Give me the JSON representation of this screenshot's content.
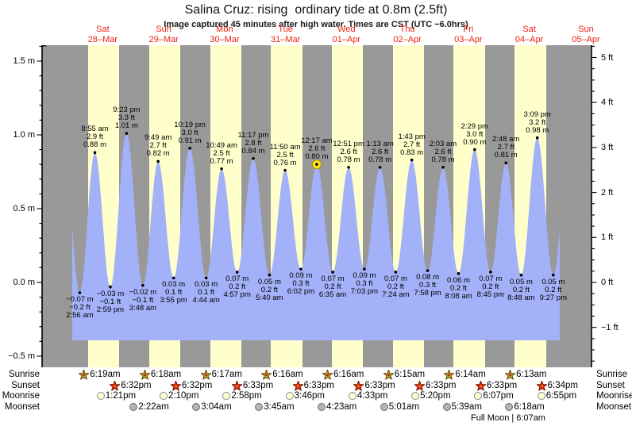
{
  "title": "Salina Cruz: rising  ordinary tide at 0.8m (2.5ft)",
  "subtitle": "Image captured 45 minutes after high water. Times are CST (UTC −6.0hrs)",
  "colors": {
    "night_band": "#999999",
    "daylight_band": "#ffffcc",
    "tide_fill": "#a2b1f8",
    "date_label": "#ee2211",
    "marker_dot": "#000000",
    "current_marker": "#ffe81e",
    "sunrise_star": "#d2aa28",
    "sunset_star": "#e33414",
    "moonrise_circle": "#ffffd6",
    "moonset_circle": "#b4b4b4"
  },
  "y_axis": {
    "left_labels": [
      "1.5 m",
      "1.0 m",
      "0.5 m",
      "0.0 m",
      "−0.5 m"
    ],
    "right_labels": [
      "5 ft",
      "4 ft",
      "3 ft",
      "2 ft",
      "1 ft",
      "0 ft",
      "−1 ft"
    ]
  },
  "chart_data": {
    "type": "area",
    "title": "Salina Cruz: rising ordinary tide at 0.8m (2.5ft)",
    "ylabel_left": "m",
    "ylabel_right": "ft",
    "ylim_m": [
      -0.5,
      1.5
    ],
    "ylim_ft": [
      -1,
      5
    ],
    "days": [
      {
        "name": "Sat",
        "date": "28–Mar"
      },
      {
        "name": "Sun",
        "date": "29–Mar"
      },
      {
        "name": "Mon",
        "date": "30–Mar"
      },
      {
        "name": "Tue",
        "date": "31–Mar"
      },
      {
        "name": "Wed",
        "date": "01–Apr"
      },
      {
        "name": "Thu",
        "date": "02–Apr"
      },
      {
        "name": "Fri",
        "date": "03–Apr"
      },
      {
        "name": "Sat",
        "date": "04–Apr"
      },
      {
        "name": "Sun",
        "date": "05–Apr"
      }
    ],
    "extremes": [
      {
        "day": 0,
        "time": "2:56 am",
        "type": "low",
        "m": -0.07,
        "ft": -0.2
      },
      {
        "day": 0,
        "time": "8:55 am",
        "type": "high",
        "m": 0.88,
        "ft": 2.9
      },
      {
        "day": 0,
        "time": "2:59 pm",
        "type": "low",
        "m": -0.03,
        "ft": -0.1
      },
      {
        "day": 0,
        "time": "9:23 pm",
        "type": "high",
        "m": 1.01,
        "ft": 3.3
      },
      {
        "day": 1,
        "time": "3:48 am",
        "type": "low",
        "m": -0.02,
        "ft": -0.1
      },
      {
        "day": 1,
        "time": "9:49 am",
        "type": "high",
        "m": 0.82,
        "ft": 2.7
      },
      {
        "day": 1,
        "time": "3:55 pm",
        "type": "low",
        "m": 0.03,
        "ft": 0.1
      },
      {
        "day": 1,
        "time": "10:19 pm",
        "type": "high",
        "m": 0.91,
        "ft": 3.0
      },
      {
        "day": 2,
        "time": "4:44 am",
        "type": "low",
        "m": 0.03,
        "ft": 0.1
      },
      {
        "day": 2,
        "time": "10:49 am",
        "type": "high",
        "m": 0.77,
        "ft": 2.5
      },
      {
        "day": 2,
        "time": "4:57 pm",
        "type": "low",
        "m": 0.07,
        "ft": 0.2
      },
      {
        "day": 2,
        "time": "11:17 pm",
        "type": "high",
        "m": 0.84,
        "ft": 2.8
      },
      {
        "day": 3,
        "time": "5:40 am",
        "type": "low",
        "m": 0.05,
        "ft": 0.2
      },
      {
        "day": 3,
        "time": "11:50 am",
        "type": "high",
        "m": 0.76,
        "ft": 2.5
      },
      {
        "day": 3,
        "time": "6:02 pm",
        "type": "low",
        "m": 0.09,
        "ft": 0.3
      },
      {
        "day": 4,
        "time": "12:17 am",
        "type": "high",
        "m": 0.8,
        "ft": 2.6,
        "current": true
      },
      {
        "day": 4,
        "time": "6:35 am",
        "type": "low",
        "m": 0.07,
        "ft": 0.2
      },
      {
        "day": 4,
        "time": "12:51 pm",
        "type": "high",
        "m": 0.78,
        "ft": 2.6
      },
      {
        "day": 4,
        "time": "7:03 pm",
        "type": "low",
        "m": 0.09,
        "ft": 0.3
      },
      {
        "day": 5,
        "time": "1:13 am",
        "type": "high",
        "m": 0.78,
        "ft": 2.6
      },
      {
        "day": 5,
        "time": "7:24 am",
        "type": "low",
        "m": 0.07,
        "ft": 0.2
      },
      {
        "day": 5,
        "time": "1:43 pm",
        "type": "high",
        "m": 0.83,
        "ft": 2.7
      },
      {
        "day": 5,
        "time": "7:58 pm",
        "type": "low",
        "m": 0.08,
        "ft": 0.3
      },
      {
        "day": 6,
        "time": "2:03 am",
        "type": "high",
        "m": 0.78,
        "ft": 2.6
      },
      {
        "day": 6,
        "time": "8:08 am",
        "type": "low",
        "m": 0.06,
        "ft": 0.2
      },
      {
        "day": 6,
        "time": "2:29 pm",
        "type": "high",
        "m": 0.9,
        "ft": 3.0
      },
      {
        "day": 6,
        "time": "8:45 pm",
        "type": "low",
        "m": 0.07,
        "ft": 0.2
      },
      {
        "day": 7,
        "time": "2:48 am",
        "type": "high",
        "m": 0.81,
        "ft": 2.7
      },
      {
        "day": 7,
        "time": "8:48 am",
        "type": "low",
        "m": 0.05,
        "ft": 0.2
      },
      {
        "day": 7,
        "time": "3:09 pm",
        "type": "high",
        "m": 0.98,
        "ft": 3.2
      },
      {
        "day": 7,
        "time": "9:27 pm",
        "type": "low",
        "m": 0.05,
        "ft": 0.2
      }
    ]
  },
  "almanac": {
    "row_labels": [
      "Sunrise",
      "Sunset",
      "Moonrise",
      "Moonset"
    ],
    "sunrise": [
      {
        "day": 0,
        "time": "6:19am"
      },
      {
        "day": 1,
        "time": "6:18am"
      },
      {
        "day": 2,
        "time": "6:17am"
      },
      {
        "day": 3,
        "time": "6:16am"
      },
      {
        "day": 4,
        "time": "6:16am"
      },
      {
        "day": 5,
        "time": "6:15am"
      },
      {
        "day": 6,
        "time": "6:14am"
      },
      {
        "day": 7,
        "time": "6:13am"
      }
    ],
    "sunset": [
      {
        "day": 0,
        "time": "6:32pm"
      },
      {
        "day": 1,
        "time": "6:32pm"
      },
      {
        "day": 2,
        "time": "6:33pm"
      },
      {
        "day": 3,
        "time": "6:33pm"
      },
      {
        "day": 4,
        "time": "6:33pm"
      },
      {
        "day": 5,
        "time": "6:33pm"
      },
      {
        "day": 6,
        "time": "6:33pm"
      },
      {
        "day": 7,
        "time": "6:34pm"
      }
    ],
    "moonrise": [
      {
        "day": 0,
        "time": "1:21pm"
      },
      {
        "day": 1,
        "time": "2:10pm"
      },
      {
        "day": 2,
        "time": "2:58pm"
      },
      {
        "day": 3,
        "time": "3:46pm"
      },
      {
        "day": 4,
        "time": "4:33pm"
      },
      {
        "day": 5,
        "time": "5:20pm"
      },
      {
        "day": 6,
        "time": "6:07pm"
      },
      {
        "day": 7,
        "time": "6:55pm"
      }
    ],
    "moonset": [
      {
        "day": 1,
        "time": "2:22am"
      },
      {
        "day": 2,
        "time": "3:04am"
      },
      {
        "day": 3,
        "time": "3:45am"
      },
      {
        "day": 4,
        "time": "4:23am"
      },
      {
        "day": 5,
        "time": "5:01am"
      },
      {
        "day": 6,
        "time": "5:39am"
      },
      {
        "day": 7,
        "time": "6:18am"
      }
    ],
    "full_moon": "Full Moon | 6:07am"
  }
}
